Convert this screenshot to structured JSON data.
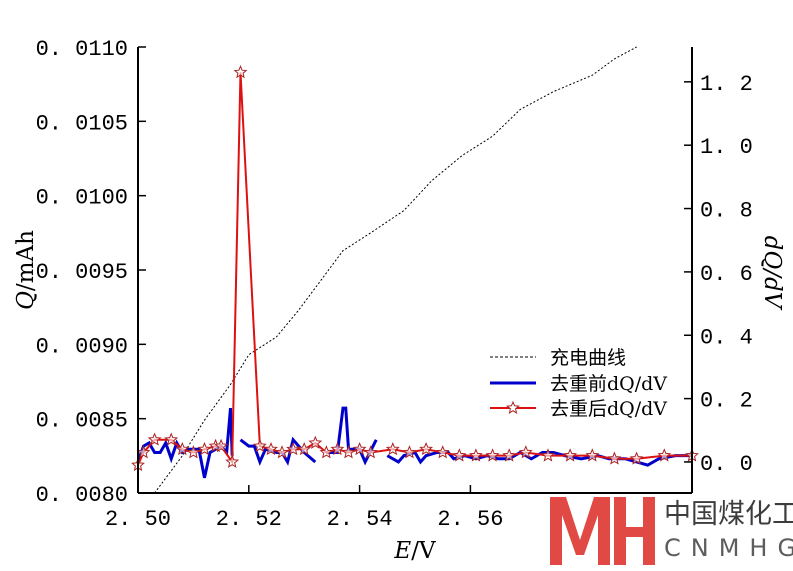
{
  "chart_data": {
    "type": "line",
    "xlabel_italic": "E",
    "xlabel_rest": "/V",
    "ylabel_left_italic": "Q",
    "ylabel_left_rest": "/mAh",
    "ylabel_right": "dQ/dV",
    "xlim": [
      2.5,
      2.6
    ],
    "ylim_left": [
      0.008,
      0.011
    ],
    "ylim_right": [
      -0.098,
      1.31
    ],
    "x_ticks": [
      "2.50",
      "2.52",
      "2.54",
      "2.56"
    ],
    "x_tick_values": [
      2.5,
      2.52,
      2.54,
      2.56
    ],
    "y_left_ticks": [
      "0.0080",
      "0.0085",
      "0.0090",
      "0.0095",
      "0.0100",
      "0.0105",
      "0.0110"
    ],
    "y_left_tick_values": [
      0.008,
      0.0085,
      0.009,
      0.0095,
      0.01,
      0.0105,
      0.011
    ],
    "y_right_ticks": [
      "0.0",
      "0.2",
      "0.4",
      "0.6",
      "0.8",
      "1.0",
      "1.2"
    ],
    "y_right_tick_values": [
      0.0,
      0.2,
      0.4,
      0.6,
      0.8,
      1.0,
      1.2
    ],
    "legend_position": "lower-right",
    "series": [
      {
        "name": "充电曲线",
        "axis": "left",
        "style": "dashed",
        "color": "#000000",
        "x": [
          2.503,
          2.508,
          2.512,
          2.5167,
          2.52,
          2.525,
          2.529,
          2.533,
          2.537,
          2.542,
          2.548,
          2.553,
          2.5585,
          2.564,
          2.569,
          2.575,
          2.582,
          2.586,
          2.59
        ],
        "y": [
          0.008,
          0.00825,
          0.00849,
          0.00873,
          0.00893,
          0.00905,
          0.00923,
          0.00943,
          0.00963,
          0.00975,
          0.0099,
          0.0101,
          0.01027,
          0.0104,
          0.01058,
          0.0107,
          0.01081,
          0.01092,
          0.011
        ]
      },
      {
        "name": "去重前dQ/dV",
        "axis": "right",
        "style": "solid",
        "color": "#0000cc",
        "segments": [
          {
            "x": [
              2.5,
              2.501,
              2.502,
              2.503,
              2.504,
              2.505,
              2.506,
              2.507,
              2.508,
              2.509,
              2.51,
              2.511,
              2.512,
              2.513,
              2.514,
              2.515,
              2.516,
              2.5167,
              2.517
            ],
            "y": [
              0.0,
              0.05,
              0.06,
              0.03,
              0.03,
              0.06,
              0.01,
              0.06,
              0.03,
              0.04,
              0.04,
              0.04,
              -0.05,
              0.03,
              0.04,
              0.05,
              0.03,
              0.17,
              0.02
            ]
          },
          {
            "x": [
              2.5185,
              2.52,
              2.521,
              2.522,
              2.523,
              2.525,
              2.526,
              2.527,
              2.528,
              2.529,
              2.53,
              2.532
            ],
            "y": [
              0.07,
              0.05,
              0.05,
              0.0,
              0.04,
              0.03,
              0.03,
              0.0,
              0.07,
              0.05,
              0.03,
              0.0
            ]
          },
          {
            "x": [
              2.534,
              2.536,
              2.537,
              2.5375,
              2.538,
              2.54,
              2.541,
              2.543
            ],
            "y": [
              0.03,
              0.03,
              0.17,
              0.17,
              0.04,
              0.04,
              0.0,
              0.07
            ]
          },
          {
            "x": [
              2.545,
              2.547,
              2.548,
              2.55,
              2.551,
              2.552,
              2.554,
              2.556,
              2.557,
              2.559,
              2.561,
              2.563,
              2.565,
              2.567,
              2.569,
              2.571,
              2.573,
              2.575,
              2.577,
              2.58,
              2.583,
              2.585,
              2.588,
              2.59,
              2.592,
              2.594,
              2.597,
              2.6
            ],
            "y": [
              0.02,
              0.0,
              0.02,
              0.03,
              0.0,
              0.02,
              0.03,
              0.03,
              0.01,
              0.02,
              0.01,
              0.02,
              0.01,
              0.01,
              0.03,
              0.01,
              0.03,
              0.03,
              0.02,
              0.01,
              0.02,
              0.01,
              0.01,
              0.0,
              -0.01,
              0.01,
              0.02,
              0.02
            ]
          }
        ]
      },
      {
        "name": "去重后dQ/dV",
        "axis": "right",
        "style": "solid-star",
        "color": "#dd1111",
        "x": [
          2.5,
          2.501,
          2.503,
          2.506,
          2.508,
          2.51,
          2.512,
          2.514,
          2.515,
          2.517,
          2.5185,
          2.522,
          2.524,
          2.526,
          2.528,
          2.53,
          2.532,
          2.534,
          2.536,
          2.538,
          2.54,
          2.542,
          2.546,
          2.549,
          2.552,
          2.555,
          2.558,
          2.561,
          2.564,
          2.567,
          2.57,
          2.574,
          2.578,
          2.582,
          2.586,
          2.59,
          2.595,
          2.6
        ],
        "y": [
          -0.01,
          0.03,
          0.07,
          0.07,
          0.04,
          0.03,
          0.04,
          0.05,
          0.05,
          0.0,
          1.23,
          0.05,
          0.04,
          0.03,
          0.04,
          0.04,
          0.06,
          0.03,
          0.04,
          0.03,
          0.04,
          0.03,
          0.04,
          0.03,
          0.04,
          0.03,
          0.02,
          0.02,
          0.02,
          0.02,
          0.03,
          0.02,
          0.02,
          0.02,
          0.01,
          0.01,
          0.02,
          0.02
        ]
      }
    ]
  },
  "watermark": {
    "cn": "中国煤化工",
    "en": "CNMHG",
    "color": "#e0403a"
  }
}
